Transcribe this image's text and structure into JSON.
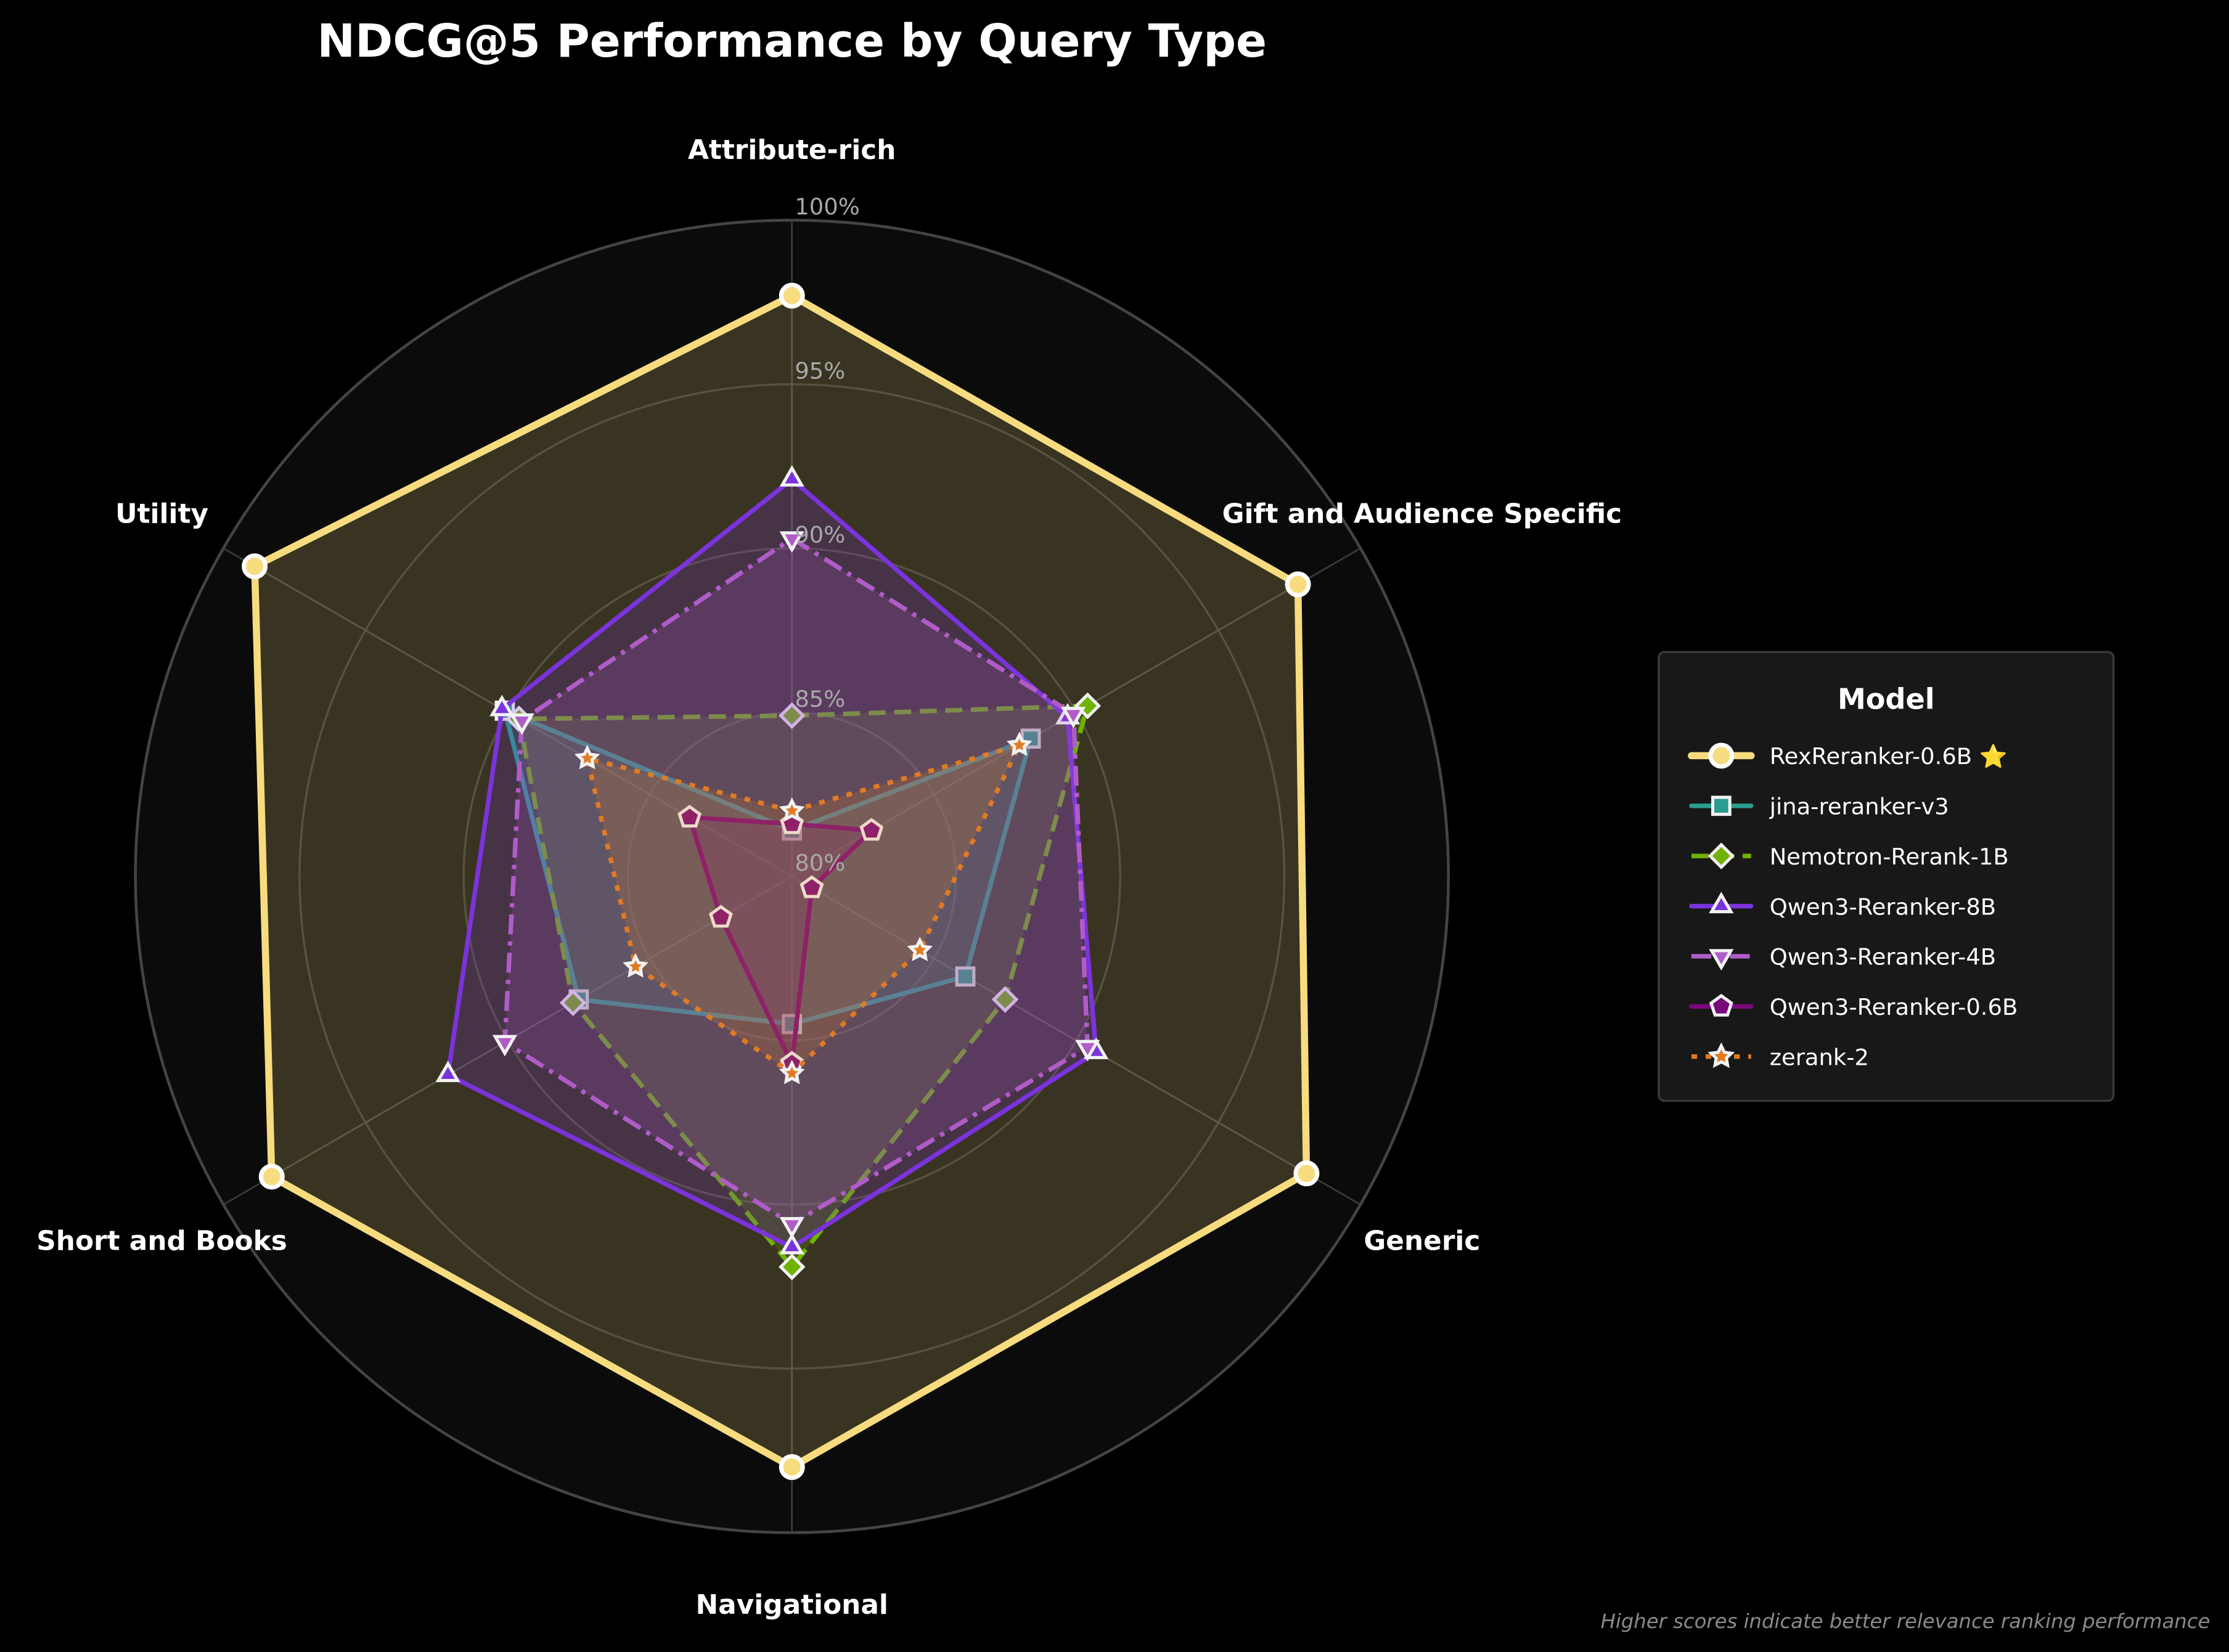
{
  "chart_data": {
    "type": "radar",
    "title": "NDCG@5 Performance by Query Type",
    "categories": [
      "Attribute-rich",
      "Gift and Audience Specific",
      "Generic",
      "Navigational",
      "Short and Books",
      "Utility"
    ],
    "r_ticks": [
      80,
      85,
      90,
      95,
      100
    ],
    "r_tick_labels": [
      "80%",
      "85%",
      "90%",
      "95%",
      "100%"
    ],
    "rlim": [
      80,
      100
    ],
    "grid": true,
    "legend": {
      "title": "Model",
      "placement": "right"
    },
    "series": [
      {
        "name": "RexReranker-0.6B ⭐",
        "color": "#F7DC7F",
        "marker": "circle",
        "dash": "solid",
        "values": [
          97.7,
          97.8,
          98.1,
          98.0,
          98.3,
          98.9
        ]
      },
      {
        "name": "jina-reranker-v3",
        "color": "#2A9D8F",
        "marker": "square",
        "dash": "solid",
        "values": [
          81.4,
          88.4,
          86.1,
          84.5,
          87.5,
          90.1
        ]
      },
      {
        "name": "Nemotron-Rerank-1B",
        "color": "#6FB300",
        "marker": "diamond",
        "dash": "dashed",
        "values": [
          84.9,
          90.4,
          87.5,
          91.9,
          87.7,
          89.6
        ]
      },
      {
        "name": "Qwen3-Reranker-8B",
        "color": "#7B33DC",
        "marker": "triangle-up",
        "dash": "solid",
        "values": [
          92.1,
          89.7,
          90.7,
          91.3,
          92.1,
          90.2
        ]
      },
      {
        "name": "Qwen3-Reranker-4B",
        "color": "#B05CC8",
        "marker": "triangle-down",
        "dash": "dashdot",
        "values": [
          90.3,
          89.9,
          90.4,
          90.6,
          90.1,
          89.5
        ]
      },
      {
        "name": "Qwen3-Reranker-0.6B",
        "color": "#7A0A7A",
        "marker": "pentagon",
        "dash": "solid",
        "values": [
          81.6,
          82.8,
          80.7,
          85.7,
          82.5,
          83.6
        ]
      },
      {
        "name": "zerank-2",
        "color": "#E07B24",
        "marker": "star",
        "dash": "dotted",
        "values": [
          82.0,
          88.0,
          84.5,
          86.0,
          85.5,
          87.2
        ]
      }
    ],
    "footnote": "Higher scores indicate better relevance ranking performance"
  }
}
